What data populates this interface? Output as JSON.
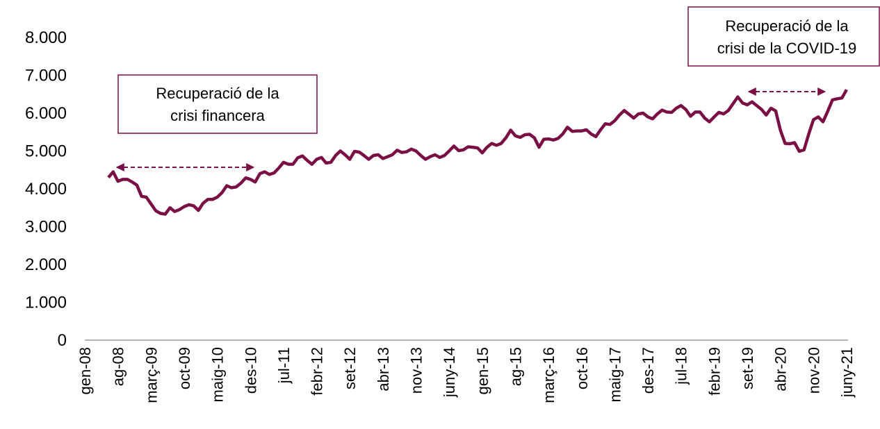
{
  "chart_data": {
    "type": "line",
    "categories": [
      "gen-08",
      null,
      null,
      null,
      null,
      null,
      null,
      "ag-08",
      null,
      null,
      null,
      null,
      null,
      null,
      "març-09",
      null,
      null,
      null,
      null,
      null,
      null,
      "oct-09",
      null,
      null,
      null,
      null,
      null,
      null,
      "maig-10",
      null,
      null,
      null,
      null,
      null,
      null,
      "des-10",
      null,
      null,
      null,
      null,
      null,
      null,
      "jul-11",
      null,
      null,
      null,
      null,
      null,
      null,
      "febr-12",
      null,
      null,
      null,
      null,
      null,
      null,
      "set-12",
      null,
      null,
      null,
      null,
      null,
      null,
      "abr-13",
      null,
      null,
      null,
      null,
      null,
      null,
      "nov-13",
      null,
      null,
      null,
      null,
      null,
      null,
      "juny-14",
      null,
      null,
      null,
      null,
      null,
      null,
      "gen-15",
      null,
      null,
      null,
      null,
      null,
      null,
      "ag-15",
      null,
      null,
      null,
      null,
      null,
      null,
      "març-16",
      null,
      null,
      null,
      null,
      null,
      null,
      "oct-16",
      null,
      null,
      null,
      null,
      null,
      null,
      "maig-17",
      null,
      null,
      null,
      null,
      null,
      null,
      "des-17",
      null,
      null,
      null,
      null,
      null,
      null,
      "jul-18",
      null,
      null,
      null,
      null,
      null,
      null,
      "febr-19",
      null,
      null,
      null,
      null,
      null,
      null,
      "set-19",
      null,
      null,
      null,
      null,
      null,
      null,
      "abr-20",
      null,
      null,
      null,
      null,
      null,
      null,
      "nov-20",
      null,
      null,
      null,
      null,
      null,
      null,
      "juny-21"
    ],
    "values": [
      null,
      null,
      null,
      null,
      null,
      4300,
      4450,
      4200,
      4250,
      4250,
      4180,
      4100,
      3800,
      3780,
      3600,
      3420,
      3350,
      3330,
      3500,
      3400,
      3450,
      3530,
      3580,
      3550,
      3430,
      3620,
      3720,
      3720,
      3780,
      3900,
      4080,
      4030,
      4050,
      4150,
      4290,
      4250,
      4180,
      4400,
      4450,
      4380,
      4420,
      4550,
      4700,
      4650,
      4650,
      4820,
      4870,
      4750,
      4650,
      4780,
      4830,
      4680,
      4700,
      4880,
      5000,
      4900,
      4780,
      4990,
      4970,
      4880,
      4780,
      4880,
      4900,
      4800,
      4850,
      4900,
      5020,
      4960,
      4980,
      5050,
      5000,
      4880,
      4780,
      4850,
      4900,
      4830,
      4880,
      5000,
      5130,
      5010,
      5030,
      5110,
      5100,
      5080,
      4950,
      5100,
      5200,
      5150,
      5200,
      5350,
      5550,
      5400,
      5360,
      5430,
      5440,
      5350,
      5100,
      5310,
      5320,
      5290,
      5330,
      5450,
      5630,
      5520,
      5530,
      5530,
      5560,
      5450,
      5380,
      5560,
      5720,
      5700,
      5800,
      5950,
      6070,
      5970,
      5870,
      5980,
      6000,
      5900,
      5850,
      5980,
      6080,
      6030,
      6020,
      6130,
      6200,
      6100,
      5920,
      6030,
      6030,
      5870,
      5770,
      5900,
      6020,
      5980,
      6070,
      6250,
      6430,
      6270,
      6220,
      6300,
      6200,
      6100,
      5950,
      6130,
      6060,
      5550,
      5200,
      5190,
      5220,
      4990,
      5030,
      5450,
      5830,
      5900,
      5770,
      6050,
      6350,
      6380,
      6400,
      6620
    ],
    "color": "#7a0f45",
    "ylim": [
      0,
      8000
    ],
    "yticks": [
      0,
      {
        "value": 1000,
        "label": "1.000"
      },
      {
        "value": 2000,
        "label": "2.000"
      },
      {
        "value": 3000,
        "label": "3.000"
      },
      {
        "value": 4000,
        "label": "4.000"
      },
      {
        "value": 5000,
        "label": "5.000"
      },
      {
        "value": 6000,
        "label": "6.000"
      },
      {
        "value": 7000,
        "label": "7.000"
      },
      {
        "value": 8000,
        "label": "8.000"
      }
    ],
    "grid": false,
    "annotations": [
      {
        "lines": [
          "Recuperació de la",
          "crisi financera"
        ]
      },
      {
        "lines": [
          "Recuperació de la",
          "crisi de la COVID-19"
        ]
      }
    ]
  }
}
